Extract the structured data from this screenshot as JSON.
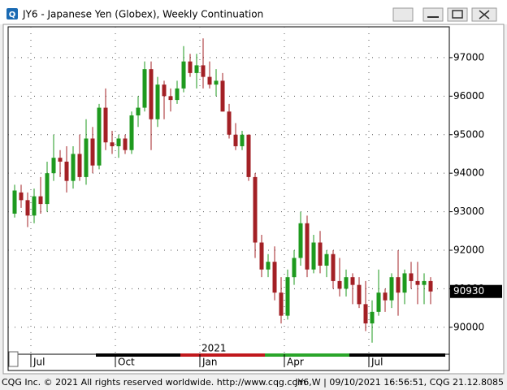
{
  "window_title": "JY6 - Japanese Yen (Globex), Weekly Continuation",
  "footer": {
    "left": "CQG Inc. © 2021 All rights reserved worldwide. http://www.cqg.com",
    "right": "JY6,W | 09/10/2021 16:56:51, CQG 21.12.8085"
  },
  "chart_data": {
    "type": "candlestick",
    "up_color": "#1e9a1e",
    "down_color": "#a32025",
    "year_label": "2021",
    "year_label_index": 29,
    "categories": [
      null,
      null,
      null,
      "Jul",
      null,
      null,
      null,
      null,
      null,
      null,
      null,
      null,
      null,
      null,
      null,
      null,
      "Oct",
      null,
      null,
      null,
      null,
      null,
      null,
      null,
      null,
      null,
      null,
      null,
      null,
      "Jan",
      null,
      null,
      null,
      null,
      null,
      null,
      null,
      null,
      null,
      null,
      null,
      null,
      "Apr",
      null,
      null,
      null,
      null,
      null,
      null,
      null,
      null,
      null,
      null,
      null,
      null,
      "Jul",
      null,
      null,
      null,
      null,
      null,
      null,
      null,
      null,
      null
    ],
    "open": [
      92950,
      93500,
      93300,
      92900,
      93400,
      93200,
      94000,
      94400,
      94300,
      93800,
      94500,
      93900,
      94900,
      94200,
      95700,
      94800,
      94700,
      94900,
      94600,
      95500,
      95700,
      96700,
      95400,
      96300,
      96000,
      95900,
      96200,
      96900,
      96600,
      96800,
      96500,
      96300,
      96400,
      95600,
      95000,
      94700,
      95000,
      93900,
      92200,
      91500,
      91700,
      90900,
      90300,
      91300,
      91800,
      92700,
      91500,
      92200,
      91600,
      91900,
      91200,
      91000,
      91300,
      91100,
      90600,
      90100,
      90400,
      90900,
      90700,
      91300,
      90900,
      91400,
      91200,
      91100,
      91200
    ],
    "high": [
      93700,
      93700,
      93500,
      93600,
      93900,
      94300,
      95000,
      94600,
      94700,
      94700,
      95000,
      95400,
      95200,
      95800,
      96200,
      95100,
      95000,
      95000,
      95600,
      96000,
      96900,
      96900,
      96500,
      96400,
      96200,
      96400,
      97300,
      97100,
      97100,
      97500,
      96900,
      96700,
      96600,
      95800,
      95300,
      95100,
      95000,
      94000,
      92400,
      91900,
      92100,
      91300,
      91500,
      92000,
      93000,
      92900,
      92400,
      92500,
      92000,
      92000,
      91800,
      91500,
      91400,
      91300,
      91200,
      90700,
      91500,
      91000,
      91400,
      92000,
      91500,
      91700,
      91700,
      91400,
      91300
    ],
    "low": [
      92850,
      93100,
      92600,
      92700,
      92950,
      93000,
      93800,
      93900,
      93500,
      93600,
      93800,
      93700,
      94000,
      94100,
      94600,
      94500,
      94400,
      94500,
      94500,
      95200,
      95600,
      94600,
      95200,
      95400,
      95600,
      95800,
      96100,
      96500,
      96200,
      96200,
      96200,
      96000,
      95600,
      94900,
      94600,
      94600,
      93800,
      91800,
      91300,
      91300,
      90700,
      90100,
      90200,
      91100,
      91600,
      91300,
      91400,
      91400,
      91300,
      91000,
      90800,
      90800,
      90600,
      90500,
      89900,
      89600,
      90300,
      90400,
      90500,
      90300,
      90600,
      91000,
      90600,
      90600,
      90600
    ],
    "close": [
      93550,
      93300,
      92900,
      93400,
      93200,
      94000,
      94400,
      94300,
      93800,
      94500,
      93900,
      94900,
      94200,
      95700,
      94800,
      94700,
      94900,
      94600,
      95500,
      95700,
      96700,
      95400,
      96300,
      96000,
      95900,
      96200,
      96900,
      96600,
      96800,
      96500,
      96300,
      96400,
      95600,
      95000,
      94700,
      95000,
      93900,
      92200,
      91500,
      91700,
      90900,
      90300,
      91300,
      91800,
      92700,
      91500,
      92200,
      91600,
      91900,
      91200,
      91000,
      91300,
      91100,
      90600,
      90100,
      90400,
      90900,
      90700,
      91300,
      90900,
      91400,
      91200,
      91100,
      91200,
      90930
    ],
    "last_price": 90930,
    "ylim": [
      89300,
      97800
    ],
    "yticks": [
      90000,
      91000,
      92000,
      93000,
      94000,
      95000,
      96000,
      97000
    ],
    "grid": true
  }
}
